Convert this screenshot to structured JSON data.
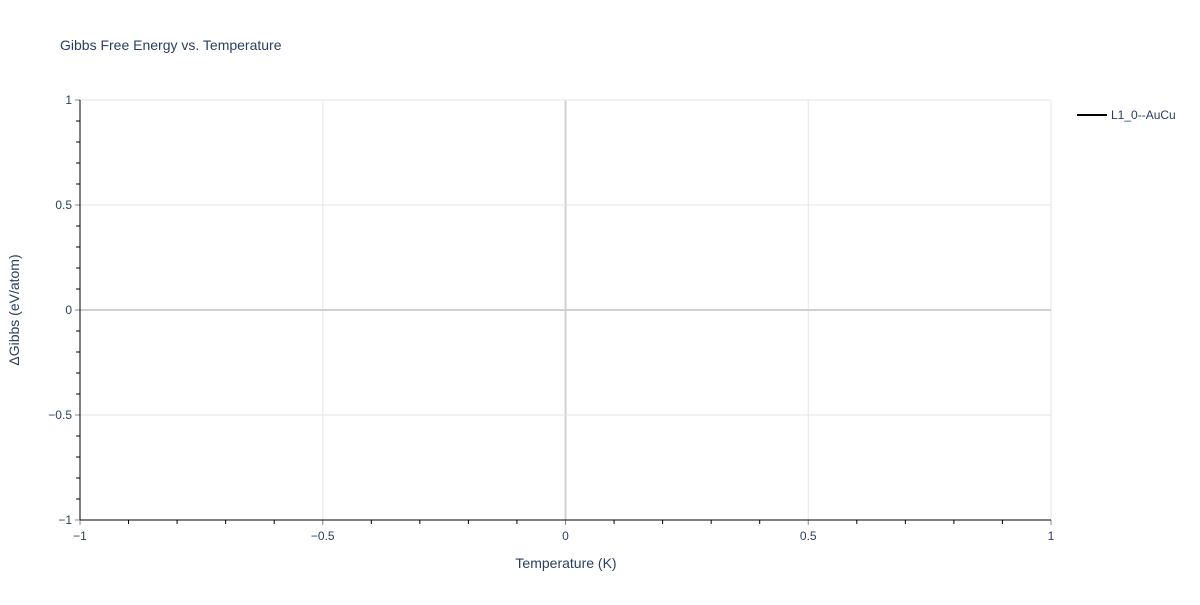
{
  "chart_data": {
    "type": "line",
    "title": "Gibbs Free Energy vs. Temperature",
    "xlabel": "Temperature (K)",
    "ylabel": "ΔGibbs (eV/atom)",
    "xlim": [
      -1,
      1
    ],
    "ylim": [
      -1,
      1
    ],
    "xticks": [
      -1,
      -0.5,
      0,
      0.5,
      1
    ],
    "yticks": [
      -1,
      -0.5,
      0,
      0.5,
      1
    ],
    "xtick_labels": [
      "−1",
      "−0.5",
      "0",
      "0.5",
      "1"
    ],
    "ytick_labels": [
      "−1",
      "−0.5",
      "0",
      "0.5",
      "1"
    ],
    "grid": true,
    "legend_position": "top-right",
    "series": [
      {
        "name": "L1_0--AuCu",
        "color": "#000000",
        "x": [],
        "y": []
      }
    ]
  }
}
